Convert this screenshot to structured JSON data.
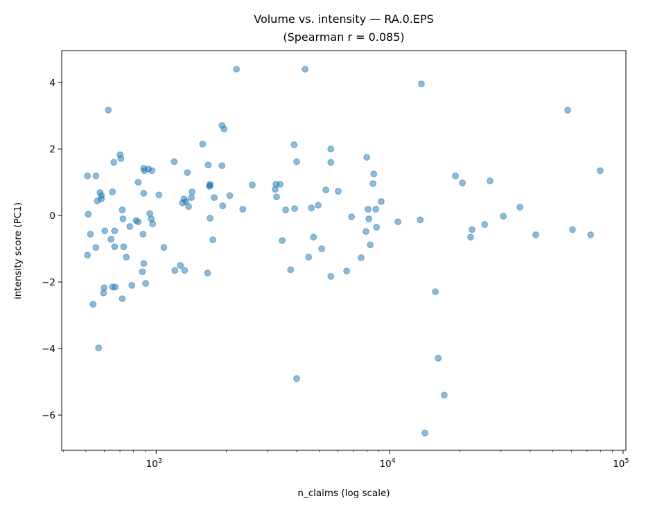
{
  "chart_data": {
    "type": "scatter",
    "title": "Volume vs. intensity — RA.0.EPS",
    "subtitle": "(Spearman r = 0.085)",
    "xlabel": "n_claims (log scale)",
    "ylabel": "intensity score (PC1)",
    "xscale": "log",
    "xlim": [
      394,
      102800
    ],
    "ylim": [
      -7.06,
      4.96
    ],
    "grid": false,
    "marker_color": "#1f77b4",
    "marker_alpha": 0.5,
    "x_ticks": [
      {
        "value": 1000,
        "label_base": "10",
        "label_exp": "3"
      },
      {
        "value": 10000,
        "label_base": "10",
        "label_exp": "4"
      },
      {
        "value": 100000,
        "label_base": "10",
        "label_exp": "5"
      }
    ],
    "y_ticks": [
      {
        "value": -6,
        "label": "−6"
      },
      {
        "value": -4,
        "label": "−4"
      },
      {
        "value": -2,
        "label": "−2"
      },
      {
        "value": 0,
        "label": "0"
      },
      {
        "value": 2,
        "label": "2"
      },
      {
        "value": 4,
        "label": "4"
      }
    ],
    "x": [
      508,
      508,
      512,
      523,
      537,
      552,
      552,
      560,
      567,
      575,
      583,
      583,
      603,
      599,
      595,
      624,
      641,
      650,
      650,
      659,
      664,
      664,
      668,
      701,
      706,
      716,
      721,
      716,
      726,
      745,
      771,
      787,
      821,
      838,
      838,
      873,
      879,
      885,
      885,
      885,
      891,
      902,
      927,
      940,
      953,
      966,
      960,
      1028,
      1079,
      1194,
      1202,
      1270,
      1297,
      1315,
      1324,
      1343,
      1361,
      1377,
      1416,
      1426,
      1581,
      1660,
      1671,
      1690,
      1702,
      1702,
      1702,
      1750,
      1774,
      1914,
      1914,
      1928,
      1954,
      2065,
      2208,
      2350,
      2582,
      3236,
      3260,
      3281,
      3396,
      3467,
      3589,
      3767,
      3899,
      3920,
      4000,
      4000,
      4345,
      4498,
      4624,
      4720,
      4943,
      5117,
      5333,
      5598,
      5598,
      5598,
      6026,
      6546,
      6871,
      7551,
      7925,
      7980,
      8091,
      8147,
      8260,
      8492,
      8551,
      8730,
      8790,
      9204,
      10860,
      13520,
      13680,
      14160,
      15700,
      16140,
      17140,
      19140,
      20510,
      22540,
      22230,
      25530,
      26920,
      30690,
      36140,
      42270,
      57940,
      60700,
      72610,
      79800
    ],
    "y": [
      1.19,
      -1.19,
      0.04,
      -0.56,
      -2.67,
      -0.96,
      1.19,
      0.44,
      -3.98,
      0.69,
      0.6,
      0.5,
      -0.46,
      -2.17,
      -2.33,
      3.17,
      -0.71,
      0.71,
      -2.15,
      1.6,
      -0.94,
      -0.46,
      -2.15,
      1.83,
      1.71,
      0.17,
      -0.1,
      -2.5,
      -0.94,
      -1.25,
      -0.33,
      -2.1,
      -0.15,
      1.0,
      -0.19,
      -1.69,
      -0.56,
      -1.44,
      0.67,
      1.42,
      1.35,
      -2.04,
      1.4,
      0.06,
      -0.1,
      -0.25,
      1.35,
      0.62,
      -0.96,
      1.62,
      -1.65,
      -1.5,
      0.38,
      0.5,
      -1.65,
      0.42,
      1.29,
      0.27,
      0.54,
      0.71,
      2.15,
      -1.73,
      1.52,
      0.88,
      -0.08,
      0.9,
      0.94,
      -0.73,
      0.54,
      2.71,
      1.5,
      0.29,
      2.6,
      0.6,
      4.4,
      0.19,
      0.92,
      0.79,
      0.94,
      0.56,
      0.94,
      -0.75,
      0.17,
      -1.63,
      2.13,
      0.21,
      -4.9,
      1.62,
      4.4,
      -1.25,
      0.23,
      -0.65,
      0.31,
      -1.0,
      0.77,
      -1.83,
      2.0,
      1.6,
      0.73,
      -1.67,
      -0.04,
      -1.27,
      -0.48,
      1.75,
      0.19,
      -0.1,
      -0.88,
      0.96,
      1.25,
      0.19,
      -0.35,
      0.42,
      -0.19,
      -0.13,
      3.96,
      -6.54,
      -2.29,
      -4.29,
      -5.4,
      1.19,
      0.98,
      -0.42,
      -0.65,
      -0.27,
      1.04,
      -0.02,
      0.25,
      -0.58,
      3.17,
      -0.42,
      -0.58,
      1.35
    ]
  }
}
